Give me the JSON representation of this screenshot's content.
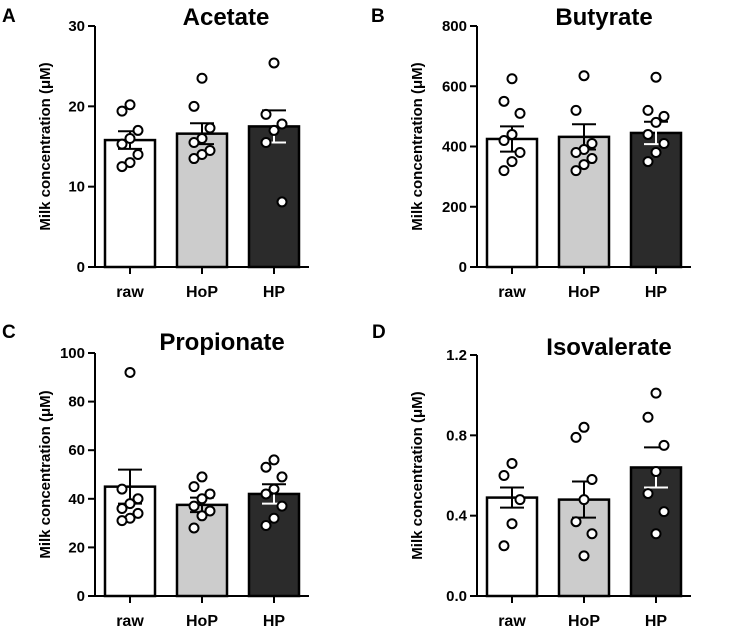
{
  "chart_data": [
    {
      "type": "bar",
      "panel": "A",
      "title": "Acetate",
      "xlabel": "",
      "ylabel": "Milk concentration (μM)",
      "ylim": [
        0,
        30
      ],
      "yticks": [
        0,
        10,
        20,
        30
      ],
      "ytick_labels": [
        "0",
        "10",
        "20",
        "30"
      ],
      "categories": [
        "raw",
        "HoP",
        "HP"
      ],
      "values": [
        15.8,
        16.6,
        17.5
      ],
      "sem": [
        1.1,
        1.3,
        2.0
      ],
      "bar_colors": [
        "#ffffff",
        "#cccccc",
        "#2b2b2b"
      ],
      "points": [
        [
          20.2,
          19.4,
          17.0,
          16.0,
          15.3,
          14.0,
          13.0,
          12.5
        ],
        [
          23.5,
          20.0,
          17.3,
          16.0,
          15.5,
          14.5,
          14.0,
          13.5
        ],
        [
          25.4,
          19.0,
          17.8,
          17.0,
          15.5,
          8.1
        ]
      ]
    },
    {
      "type": "bar",
      "panel": "B",
      "title": "Butyrate",
      "xlabel": "",
      "ylabel": "Milk concentration (μM)",
      "ylim": [
        0,
        800
      ],
      "yticks": [
        0,
        200,
        400,
        600,
        800
      ],
      "ytick_labels": [
        "0",
        "200",
        "400",
        "600",
        "800"
      ],
      "categories": [
        "raw",
        "HoP",
        "HP"
      ],
      "values": [
        425,
        432,
        445
      ],
      "sem": [
        42,
        42,
        37
      ],
      "bar_colors": [
        "#ffffff",
        "#cccccc",
        "#2b2b2b"
      ],
      "points": [
        [
          625,
          550,
          510,
          440,
          420,
          380,
          350,
          320
        ],
        [
          635,
          520,
          410,
          390,
          380,
          360,
          340,
          320
        ],
        [
          630,
          520,
          500,
          480,
          440,
          410,
          380,
          350
        ]
      ]
    },
    {
      "type": "bar",
      "panel": "C",
      "title": "Propionate",
      "xlabel": "",
      "ylabel": "Milk concentration (μM)",
      "ylim": [
        0,
        100
      ],
      "yticks": [
        0,
        20,
        40,
        60,
        80,
        100
      ],
      "ytick_labels": [
        "0",
        "20",
        "40",
        "60",
        "80",
        "100"
      ],
      "categories": [
        "raw",
        "HoP",
        "HP"
      ],
      "values": [
        45,
        37.5,
        42
      ],
      "sem": [
        7,
        3,
        4
      ],
      "bar_colors": [
        "#ffffff",
        "#cccccc",
        "#2b2b2b"
      ],
      "points": [
        [
          92,
          44,
          40,
          38,
          36,
          34,
          32,
          31
        ],
        [
          49,
          45,
          42,
          40,
          37,
          35,
          33,
          28
        ],
        [
          56,
          53,
          49,
          44,
          42,
          37,
          32,
          29
        ]
      ]
    },
    {
      "type": "bar",
      "panel": "D",
      "title": "Isovalerate",
      "xlabel": "",
      "ylabel": "Milk concentration (μM)",
      "ylim": [
        0,
        1.2
      ],
      "yticks": [
        0,
        0.4,
        0.8,
        1.2
      ],
      "ytick_labels": [
        "0.0",
        "0.4",
        "0.8",
        "1.2"
      ],
      "categories": [
        "raw",
        "HoP",
        "HP"
      ],
      "values": [
        0.49,
        0.48,
        0.64
      ],
      "sem": [
        0.05,
        0.09,
        0.1
      ],
      "bar_colors": [
        "#ffffff",
        "#cccccc",
        "#2b2b2b"
      ],
      "points": [
        [
          0.66,
          0.6,
          0.48,
          0.36,
          0.25
        ],
        [
          0.84,
          0.79,
          0.58,
          0.48,
          0.37,
          0.31,
          0.2
        ],
        [
          1.01,
          0.89,
          0.75,
          0.62,
          0.51,
          0.42,
          0.31
        ]
      ]
    }
  ]
}
